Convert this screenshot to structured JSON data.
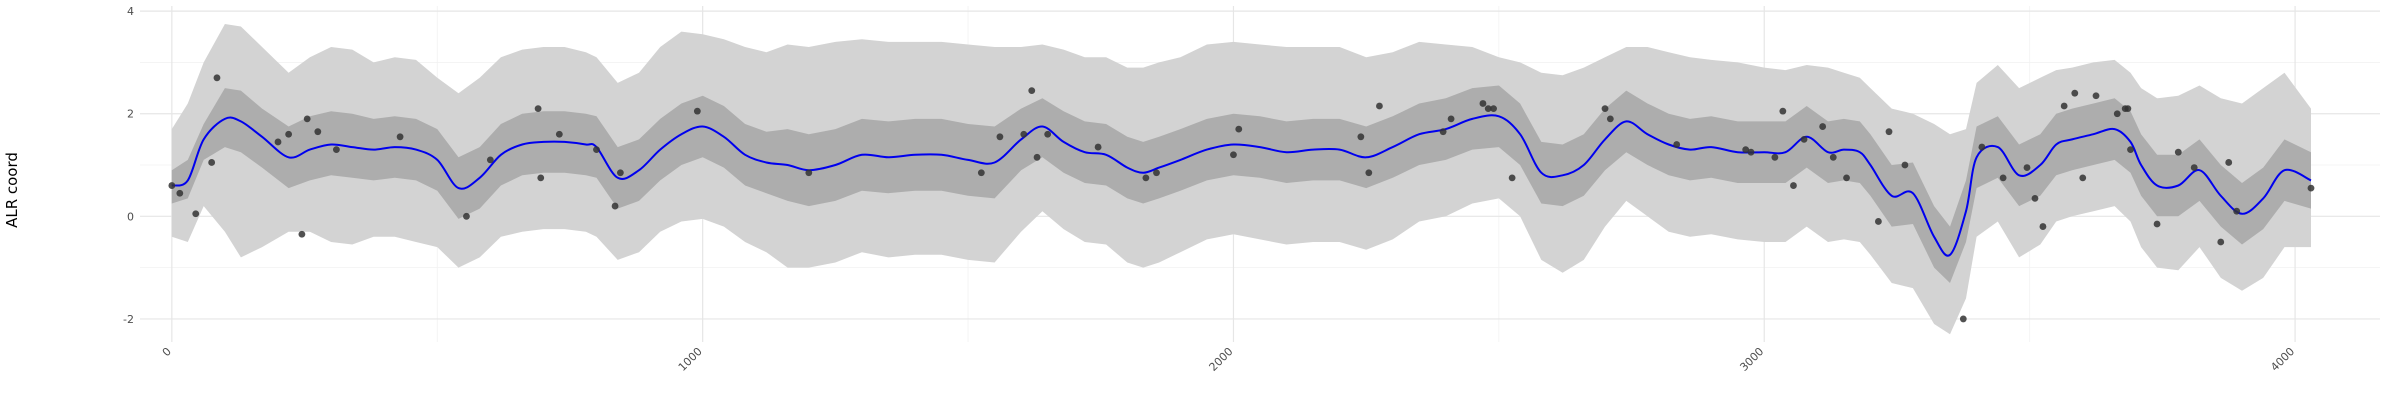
{
  "chart_data": {
    "type": "line",
    "ylabel": "ALR coord",
    "xlabel": "",
    "title": "",
    "xlim": [
      -60,
      4160
    ],
    "ylim": [
      -2.45,
      4.1
    ],
    "x_ticks": [
      0,
      1000,
      2000,
      3000,
      4000
    ],
    "x_tick_labels": [
      "0",
      "1000",
      "2000",
      "3000",
      "4000"
    ],
    "y_ticks": [
      -2,
      0,
      2,
      4
    ],
    "y_tick_labels": [
      "-2",
      "0",
      "2",
      "4"
    ],
    "grid": true,
    "colors": {
      "mean_line": "#0000ee",
      "inner_band": "#adadad",
      "outer_band": "#d3d3d3",
      "points": "#333333"
    },
    "mean_curve": {
      "x": [
        0,
        30,
        60,
        100,
        130,
        170,
        220,
        260,
        300,
        340,
        380,
        420,
        460,
        500,
        540,
        580,
        620,
        660,
        700,
        740,
        780,
        800,
        840,
        880,
        920,
        960,
        1000,
        1040,
        1080,
        1120,
        1160,
        1200,
        1250,
        1300,
        1350,
        1400,
        1450,
        1500,
        1550,
        1600,
        1640,
        1680,
        1720,
        1760,
        1800,
        1830,
        1860,
        1900,
        1950,
        2000,
        2050,
        2100,
        2150,
        2200,
        2250,
        2300,
        2350,
        2400,
        2450,
        2500,
        2540,
        2580,
        2620,
        2660,
        2700,
        2740,
        2780,
        2820,
        2860,
        2900,
        2950,
        3000,
        3040,
        3080,
        3120,
        3150,
        3180,
        3200,
        3240,
        3280,
        3320,
        3350,
        3380,
        3400,
        3440,
        3480,
        3520,
        3550,
        3580,
        3620,
        3660,
        3690,
        3710,
        3740,
        3780,
        3820,
        3860,
        3900,
        3940,
        3980,
        4030
      ],
      "y": [
        0.6,
        0.7,
        1.5,
        1.9,
        1.85,
        1.55,
        1.15,
        1.3,
        1.4,
        1.35,
        1.3,
        1.35,
        1.3,
        1.1,
        0.55,
        0.75,
        1.2,
        1.4,
        1.45,
        1.45,
        1.4,
        1.35,
        0.75,
        0.9,
        1.3,
        1.6,
        1.75,
        1.55,
        1.2,
        1.05,
        1.0,
        0.9,
        1.0,
        1.2,
        1.15,
        1.2,
        1.2,
        1.1,
        1.05,
        1.5,
        1.75,
        1.45,
        1.25,
        1.2,
        0.95,
        0.85,
        0.95,
        1.1,
        1.3,
        1.4,
        1.35,
        1.25,
        1.3,
        1.3,
        1.15,
        1.35,
        1.6,
        1.7,
        1.9,
        1.95,
        1.6,
        0.85,
        0.8,
        1.0,
        1.5,
        1.85,
        1.6,
        1.4,
        1.3,
        1.35,
        1.25,
        1.25,
        1.25,
        1.55,
        1.25,
        1.3,
        1.25,
        1.0,
        0.4,
        0.45,
        -0.4,
        -0.75,
        0.1,
        1.15,
        1.35,
        0.8,
        1.0,
        1.4,
        1.5,
        1.6,
        1.7,
        1.45,
        1.0,
        0.6,
        0.6,
        0.9,
        0.4,
        0.05,
        0.35,
        0.9,
        0.7
      ]
    },
    "inner_band": {
      "upper": [
        0.9,
        1.1,
        1.8,
        2.5,
        2.45,
        2.1,
        1.75,
        1.95,
        2.05,
        2.0,
        1.9,
        1.95,
        1.9,
        1.7,
        1.15,
        1.35,
        1.8,
        2.0,
        2.05,
        2.05,
        2.0,
        1.95,
        1.35,
        1.5,
        1.9,
        2.2,
        2.35,
        2.15,
        1.8,
        1.65,
        1.7,
        1.6,
        1.7,
        1.9,
        1.85,
        1.9,
        1.9,
        1.8,
        1.75,
        2.1,
        2.3,
        2.05,
        1.85,
        1.8,
        1.55,
        1.45,
        1.55,
        1.7,
        1.9,
        2.0,
        1.95,
        1.85,
        1.9,
        1.9,
        1.75,
        1.95,
        2.2,
        2.3,
        2.5,
        2.55,
        2.2,
        1.45,
        1.4,
        1.6,
        2.1,
        2.45,
        2.2,
        2.0,
        1.9,
        1.95,
        1.85,
        1.85,
        1.85,
        2.15,
        1.85,
        1.9,
        1.85,
        1.6,
        1.0,
        1.05,
        0.2,
        -0.2,
        0.7,
        1.75,
        1.95,
        1.4,
        1.6,
        2.0,
        2.1,
        2.2,
        2.3,
        2.05,
        1.6,
        1.2,
        1.2,
        1.5,
        1.0,
        0.65,
        0.95,
        1.5,
        1.25
      ],
      "lower": [
        0.25,
        0.35,
        1.1,
        1.35,
        1.25,
        0.95,
        0.55,
        0.7,
        0.8,
        0.75,
        0.7,
        0.75,
        0.7,
        0.5,
        -0.05,
        0.15,
        0.6,
        0.8,
        0.85,
        0.85,
        0.8,
        0.75,
        0.15,
        0.3,
        0.7,
        1.0,
        1.15,
        0.95,
        0.6,
        0.45,
        0.3,
        0.2,
        0.3,
        0.5,
        0.45,
        0.5,
        0.5,
        0.4,
        0.35,
        0.9,
        1.15,
        0.85,
        0.65,
        0.6,
        0.35,
        0.25,
        0.35,
        0.5,
        0.7,
        0.8,
        0.75,
        0.65,
        0.7,
        0.7,
        0.55,
        0.75,
        1.0,
        1.1,
        1.3,
        1.35,
        1.0,
        0.25,
        0.2,
        0.4,
        0.9,
        1.25,
        1.0,
        0.8,
        0.7,
        0.75,
        0.65,
        0.65,
        0.65,
        0.95,
        0.65,
        0.7,
        0.65,
        0.4,
        -0.2,
        -0.15,
        -1.0,
        -1.3,
        -0.5,
        0.55,
        0.75,
        0.2,
        0.4,
        0.8,
        0.9,
        1.0,
        1.1,
        0.85,
        0.4,
        0.0,
        0.0,
        0.3,
        -0.2,
        -0.55,
        -0.25,
        0.3,
        0.15
      ]
    },
    "outer_band": {
      "upper": [
        1.7,
        2.2,
        3.0,
        3.75,
        3.7,
        3.3,
        2.8,
        3.1,
        3.3,
        3.25,
        3.0,
        3.1,
        3.05,
        2.7,
        2.4,
        2.7,
        3.1,
        3.25,
        3.3,
        3.3,
        3.2,
        3.1,
        2.6,
        2.8,
        3.3,
        3.6,
        3.55,
        3.45,
        3.3,
        3.2,
        3.35,
        3.3,
        3.4,
        3.45,
        3.4,
        3.4,
        3.4,
        3.35,
        3.3,
        3.3,
        3.35,
        3.25,
        3.1,
        3.1,
        2.9,
        2.9,
        3.0,
        3.1,
        3.35,
        3.4,
        3.35,
        3.3,
        3.3,
        3.3,
        3.1,
        3.2,
        3.4,
        3.35,
        3.3,
        3.1,
        3.0,
        2.8,
        2.75,
        2.9,
        3.1,
        3.3,
        3.3,
        3.2,
        3.1,
        3.05,
        3.0,
        2.9,
        2.85,
        2.95,
        2.9,
        2.8,
        2.7,
        2.5,
        2.1,
        2.0,
        1.8,
        1.6,
        1.7,
        2.6,
        2.95,
        2.5,
        2.7,
        2.85,
        2.9,
        3.0,
        3.05,
        2.8,
        2.5,
        2.3,
        2.35,
        2.55,
        2.3,
        2.2,
        2.5,
        2.8,
        2.1
      ],
      "lower": [
        -0.4,
        -0.5,
        0.2,
        -0.3,
        -0.8,
        -0.6,
        -0.3,
        -0.3,
        -0.5,
        -0.55,
        -0.4,
        -0.4,
        -0.5,
        -0.6,
        -1.0,
        -0.8,
        -0.4,
        -0.3,
        -0.25,
        -0.25,
        -0.3,
        -0.4,
        -0.85,
        -0.7,
        -0.3,
        -0.1,
        -0.05,
        -0.2,
        -0.5,
        -0.7,
        -1.0,
        -1.0,
        -0.9,
        -0.7,
        -0.8,
        -0.75,
        -0.75,
        -0.85,
        -0.9,
        -0.3,
        0.1,
        -0.25,
        -0.5,
        -0.55,
        -0.9,
        -1.0,
        -0.9,
        -0.7,
        -0.45,
        -0.35,
        -0.45,
        -0.55,
        -0.5,
        -0.5,
        -0.65,
        -0.45,
        -0.1,
        0.0,
        0.25,
        0.35,
        0.0,
        -0.85,
        -1.1,
        -0.85,
        -0.2,
        0.3,
        0.0,
        -0.3,
        -0.4,
        -0.35,
        -0.45,
        -0.5,
        -0.5,
        -0.2,
        -0.5,
        -0.45,
        -0.5,
        -0.75,
        -1.3,
        -1.4,
        -2.1,
        -2.3,
        -1.6,
        -0.4,
        -0.1,
        -0.8,
        -0.55,
        -0.1,
        0.0,
        0.1,
        0.2,
        -0.1,
        -0.6,
        -1.0,
        -1.05,
        -0.6,
        -1.2,
        -1.45,
        -1.2,
        -0.6,
        -0.6
      ]
    },
    "points": {
      "x": [
        0,
        15,
        45,
        75,
        85,
        200,
        220,
        245,
        255,
        275,
        310,
        430,
        555,
        600,
        690,
        695,
        730,
        800,
        835,
        845,
        990,
        1200,
        1525,
        1560,
        1605,
        1620,
        1630,
        1650,
        1745,
        1835,
        1855,
        2000,
        2010,
        2240,
        2255,
        2275,
        2395,
        2410,
        2470,
        2480,
        2490,
        2525,
        2700,
        2710,
        2835,
        2965,
        2975,
        3020,
        3035,
        3055,
        3075,
        3110,
        3130,
        3155,
        3215,
        3235,
        3265,
        3375,
        3410,
        3450,
        3495,
        3510,
        3525,
        3565,
        3585,
        3600,
        3625,
        3665,
        3680,
        3685,
        3690,
        3740,
        3780,
        3810,
        3860,
        3875,
        3890,
        4030
      ],
      "y": [
        0.6,
        0.45,
        0.05,
        1.05,
        2.7,
        1.45,
        1.6,
        -0.35,
        1.9,
        1.65,
        1.3,
        1.55,
        0.0,
        1.1,
        2.1,
        0.75,
        1.6,
        1.3,
        0.2,
        0.85,
        2.05,
        0.85,
        0.85,
        1.55,
        1.6,
        2.45,
        1.15,
        1.6,
        1.35,
        0.75,
        0.85,
        1.2,
        1.7,
        1.55,
        0.85,
        2.15,
        1.65,
        1.9,
        2.2,
        2.1,
        2.1,
        0.75,
        2.1,
        1.9,
        1.4,
        1.3,
        1.25,
        1.15,
        2.05,
        0.6,
        1.5,
        1.75,
        1.15,
        0.75,
        -0.1,
        1.65,
        1.0,
        -2.0,
        1.35,
        0.75,
        0.95,
        0.35,
        -0.2,
        2.15,
        2.4,
        0.75,
        2.35,
        2.0,
        2.1,
        2.1,
        1.3,
        -0.15,
        1.25,
        0.95,
        -0.5,
        1.05,
        0.1,
        0.55
      ]
    }
  }
}
